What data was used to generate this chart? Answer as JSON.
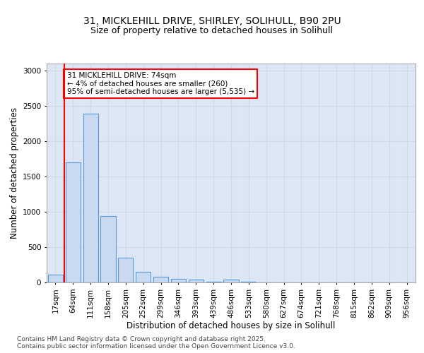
{
  "title_line1": "31, MICKLEHILL DRIVE, SHIRLEY, SOLIHULL, B90 2PU",
  "title_line2": "Size of property relative to detached houses in Solihull",
  "xlabel": "Distribution of detached houses by size in Solihull",
  "ylabel": "Number of detached properties",
  "categories": [
    "17sqm",
    "64sqm",
    "111sqm",
    "158sqm",
    "205sqm",
    "252sqm",
    "299sqm",
    "346sqm",
    "393sqm",
    "439sqm",
    "486sqm",
    "533sqm",
    "580sqm",
    "627sqm",
    "674sqm",
    "721sqm",
    "768sqm",
    "815sqm",
    "862sqm",
    "909sqm",
    "956sqm"
  ],
  "values": [
    110,
    1700,
    2390,
    940,
    350,
    150,
    80,
    55,
    45,
    10,
    40,
    10,
    5,
    2,
    2,
    1,
    1,
    1,
    0,
    0,
    0
  ],
  "bar_color": "#c9d9f0",
  "bar_edge_color": "#5b9bd5",
  "highlight_bar_index": 1,
  "annotation_text": "31 MICKLEHILL DRIVE: 74sqm\n← 4% of detached houses are smaller (260)\n95% of semi-detached houses are larger (5,535) →",
  "annotation_box_color": "white",
  "annotation_box_edge_color": "red",
  "red_line_x": 0.5,
  "ylim": [
    0,
    3100
  ],
  "yticks": [
    0,
    500,
    1000,
    1500,
    2000,
    2500,
    3000
  ],
  "grid_color": "#d0d8e8",
  "background_color": "#dce6f5",
  "footer_text": "Contains HM Land Registry data © Crown copyright and database right 2025.\nContains public sector information licensed under the Open Government Licence v3.0.",
  "title_fontsize": 10,
  "subtitle_fontsize": 9,
  "axis_label_fontsize": 8.5,
  "tick_fontsize": 7.5,
  "annotation_fontsize": 7.5,
  "footer_fontsize": 6.5
}
